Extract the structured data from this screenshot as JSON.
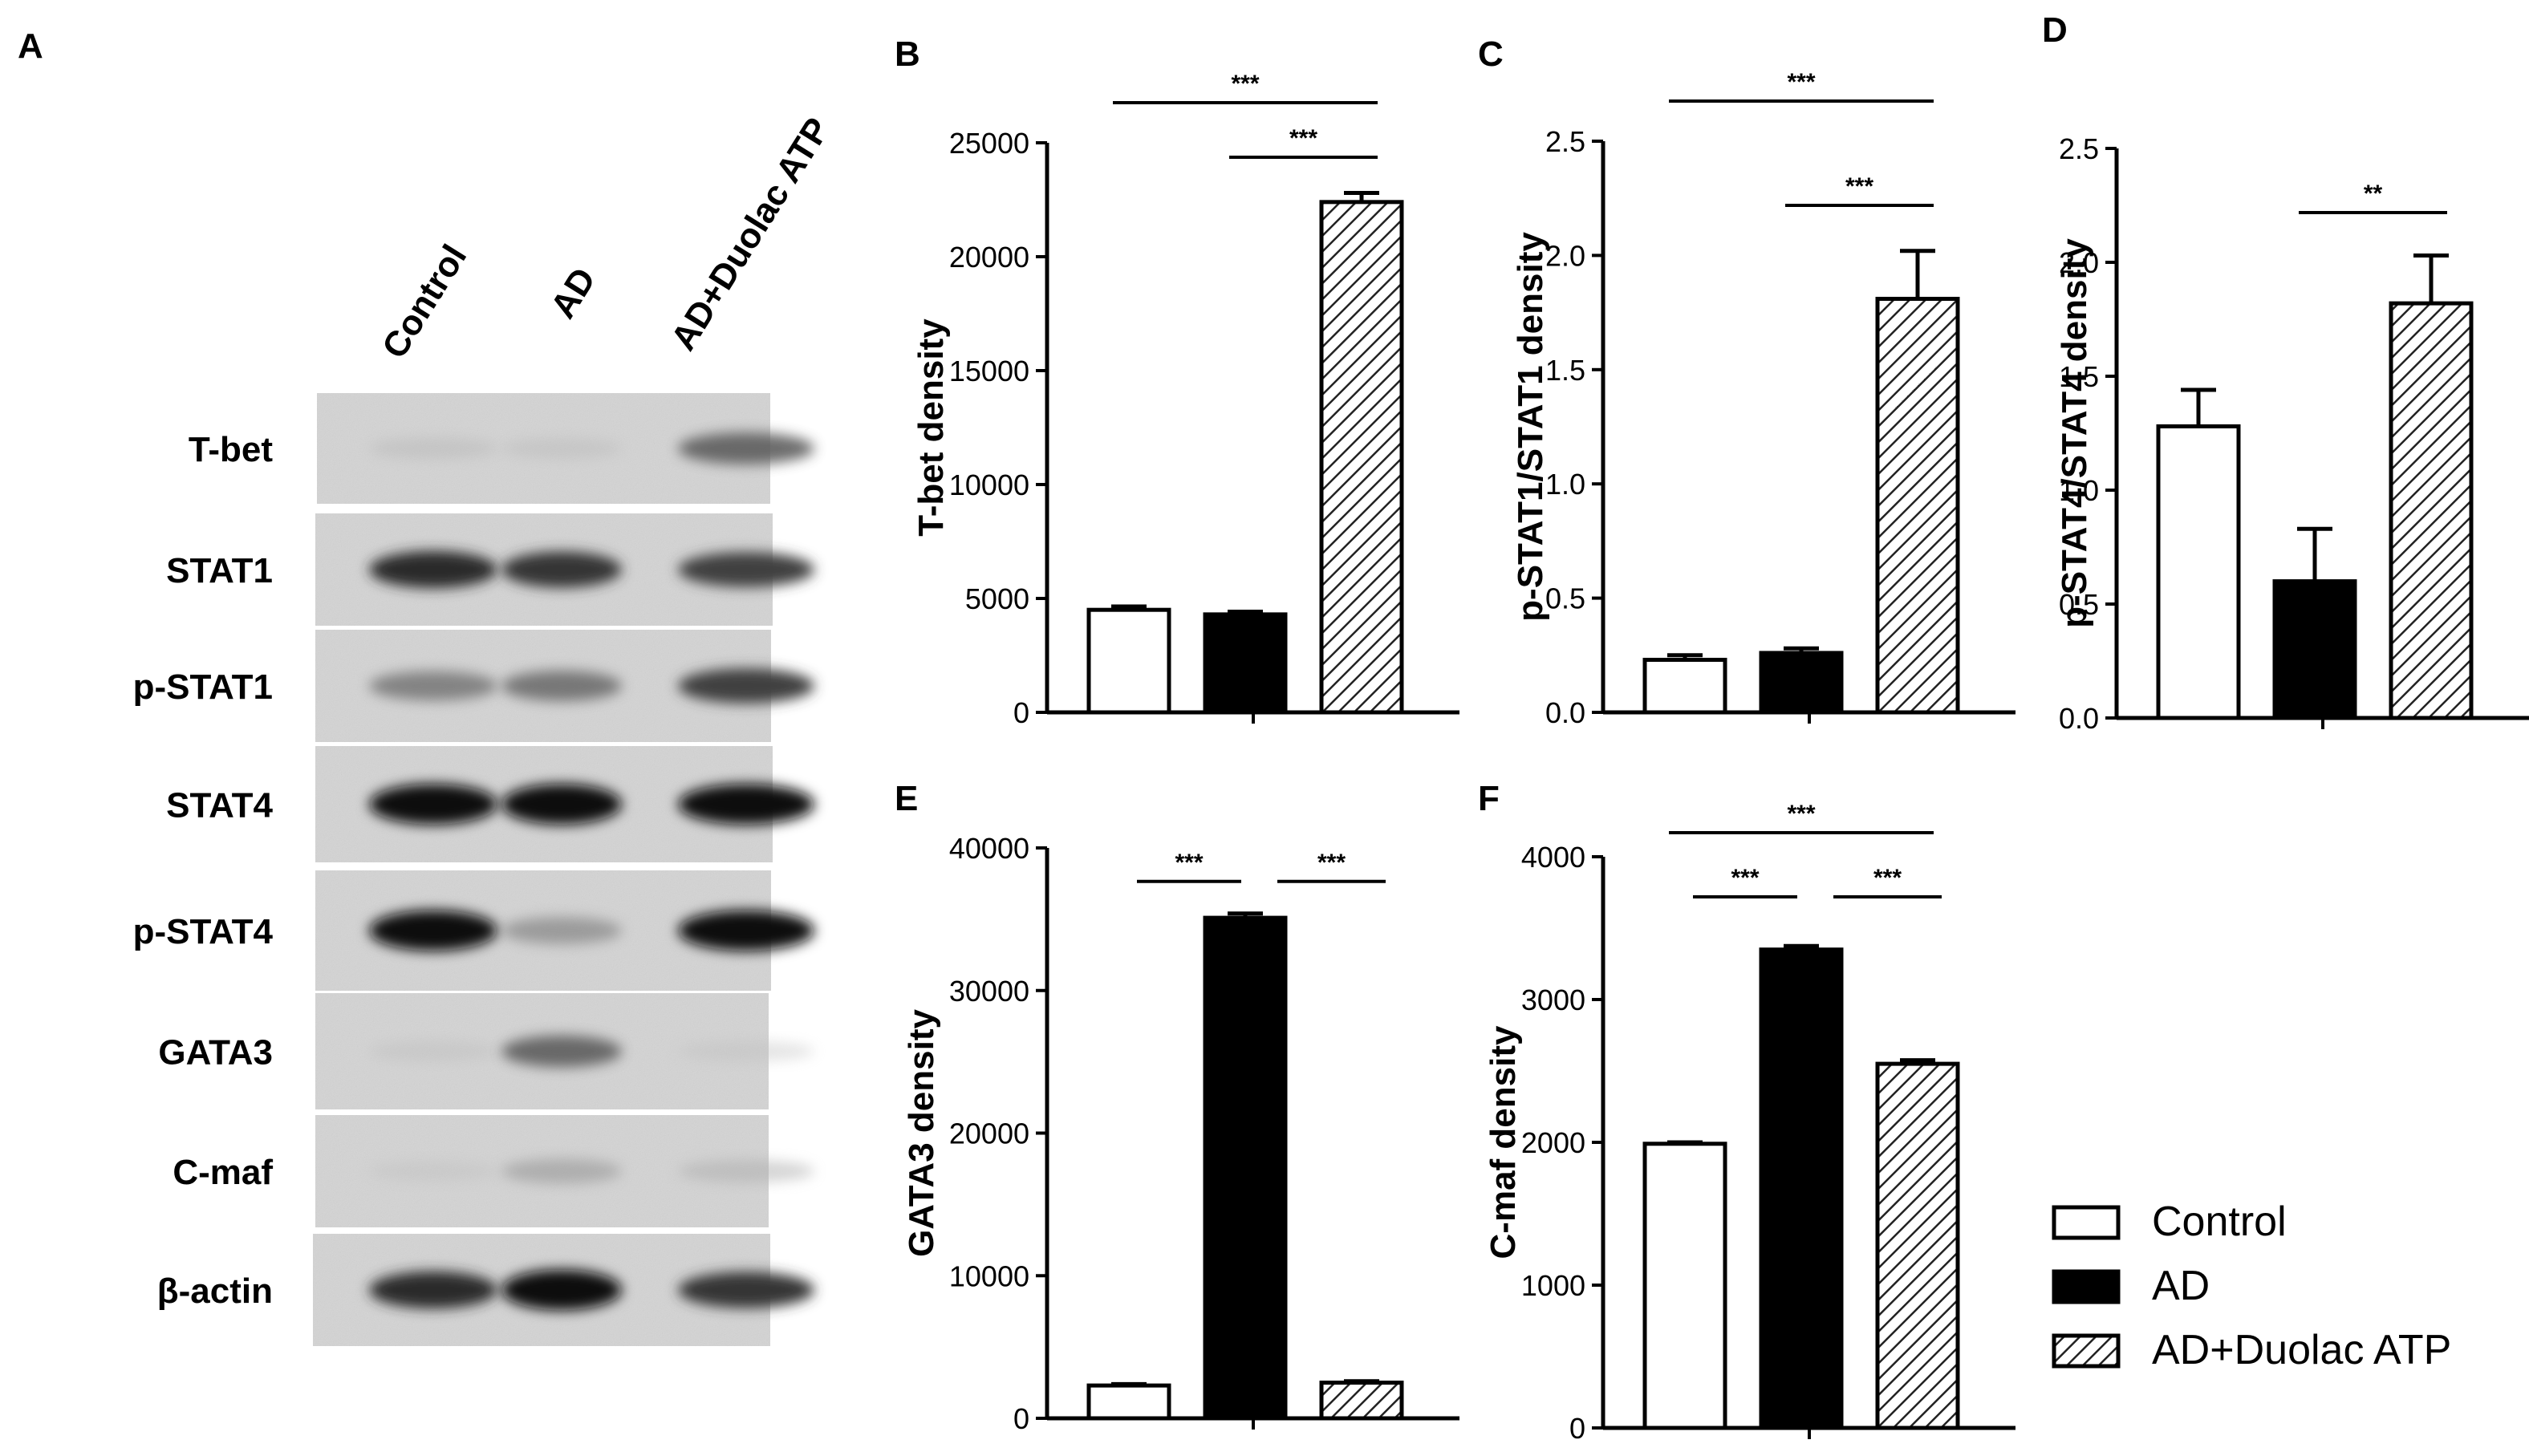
{
  "panel_labels": [
    "A",
    "B",
    "C",
    "D",
    "E",
    "F"
  ],
  "western_blot": {
    "lanes": [
      "Control",
      "AD",
      "AD+Duolac ATP"
    ],
    "rows": [
      "T-bet",
      "STAT1",
      "p-STAT1",
      "STAT4",
      "p-STAT4",
      "GATA3",
      "C-maf",
      "β-actin"
    ],
    "band_intensity": [
      [
        0.1,
        0.08,
        0.55
      ],
      [
        0.8,
        0.75,
        0.7
      ],
      [
        0.45,
        0.5,
        0.7
      ],
      [
        0.95,
        0.95,
        0.95
      ],
      [
        0.95,
        0.35,
        0.95
      ],
      [
        0.06,
        0.55,
        0.05
      ],
      [
        0.05,
        0.25,
        0.15
      ],
      [
        0.8,
        0.95,
        0.75
      ]
    ]
  },
  "legend": {
    "entries": [
      "Control",
      "AD",
      "AD+Duolac ATP"
    ]
  },
  "chart_data": [
    {
      "panel": "B",
      "type": "bar",
      "categories": [
        "Control",
        "AD",
        "AD+Duolac ATP"
      ],
      "values": [
        4500,
        4300,
        22400
      ],
      "errors": [
        150,
        120,
        400
      ],
      "ylabel": "T-bet density",
      "ylim": [
        0,
        25000
      ],
      "yticks": [
        "0",
        "5000",
        "10000",
        "15000",
        "20000",
        "25000"
      ],
      "significance": [
        {
          "from": 0,
          "to": 2,
          "label": "***"
        },
        {
          "from": 1,
          "to": 2,
          "label": "***"
        }
      ]
    },
    {
      "panel": "C",
      "type": "bar",
      "categories": [
        "Control",
        "AD",
        "AD+Duolac ATP"
      ],
      "values": [
        0.23,
        0.26,
        1.81
      ],
      "errors": [
        0.02,
        0.02,
        0.21
      ],
      "ylabel": "p-STAT1/STAT1 density",
      "ylim": [
        0,
        2.5
      ],
      "yticks": [
        "0.0",
        "0.5",
        "1.0",
        "1.5",
        "2.0",
        "2.5"
      ],
      "significance": [
        {
          "from": 0,
          "to": 2,
          "label": "***"
        },
        {
          "from": 1,
          "to": 2,
          "label": "***"
        }
      ]
    },
    {
      "panel": "D",
      "type": "bar",
      "categories": [
        "Control",
        "AD",
        "AD+Duolac ATP"
      ],
      "values": [
        1.28,
        0.6,
        1.82
      ],
      "errors": [
        0.16,
        0.23,
        0.21
      ],
      "ylabel": "p-STAT4/STAT4 density",
      "ylim": [
        0,
        2.5
      ],
      "yticks": [
        "0.0",
        "0.5",
        "1.0",
        "1.5",
        "2.0",
        "2.5"
      ],
      "significance": [
        {
          "from": 1,
          "to": 2,
          "label": "**"
        }
      ]
    },
    {
      "panel": "E",
      "type": "bar",
      "categories": [
        "Control",
        "AD",
        "AD+Duolac ATP"
      ],
      "values": [
        2300,
        35100,
        2500
      ],
      "errors": [
        100,
        300,
        100
      ],
      "ylabel": "GATA3 density",
      "ylim": [
        0,
        40000
      ],
      "yticks": [
        "0",
        "10000",
        "20000",
        "30000",
        "40000"
      ],
      "significance": [
        {
          "from": 0,
          "to": 1,
          "label": "***"
        },
        {
          "from": 1,
          "to": 2,
          "label": "***"
        }
      ]
    },
    {
      "panel": "F",
      "type": "bar",
      "categories": [
        "Control",
        "AD",
        "AD+Duolac ATP"
      ],
      "values": [
        1990,
        3350,
        2550
      ],
      "errors": [
        10,
        25,
        25
      ],
      "ylabel": "C-maf density",
      "ylim": [
        0,
        4000
      ],
      "yticks": [
        "0",
        "1000",
        "2000",
        "3000",
        "4000"
      ],
      "significance": [
        {
          "from": 0,
          "to": 2,
          "label": "***"
        },
        {
          "from": 0,
          "to": 1,
          "label": "***"
        },
        {
          "from": 1,
          "to": 2,
          "label": "***"
        }
      ]
    }
  ]
}
